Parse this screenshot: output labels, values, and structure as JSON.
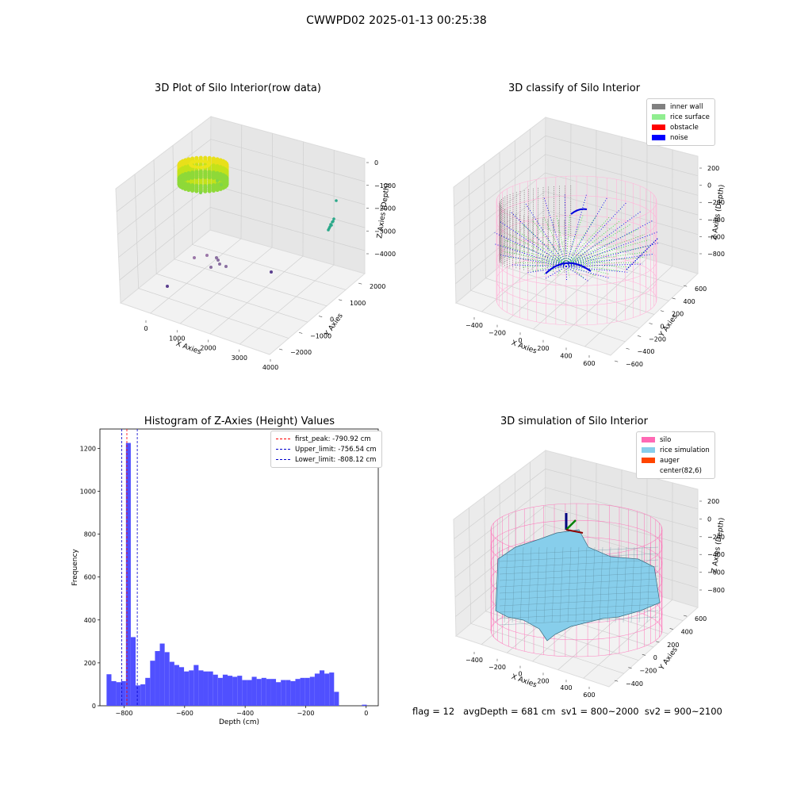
{
  "figure": {
    "suptitle": "CWWPD02 2025-01-13 00:25:38",
    "footer": "flag = 12   avgDepth = 681 cm  sv1 = 800~2000  sv2 = 900~2100"
  },
  "panels": {
    "raw": {
      "title": "3D Plot of Silo Interior(row data)",
      "xlabel": "X Axies",
      "ylabel": "Y Axies",
      "zlabel": "Z Axies (Depth)",
      "xticks": [
        "0",
        "1000",
        "2000",
        "3000",
        "4000"
      ],
      "yticks": [
        "−2000",
        "−1000",
        "0",
        "1000",
        "2000"
      ],
      "zticks": [
        "0",
        "−1000",
        "−2000",
        "−3000",
        "−4000"
      ]
    },
    "classify": {
      "title": "3D classify of Silo Interior",
      "xlabel": "X Axies",
      "ylabel": "Y Axies",
      "zlabel": "Z Axies (Depth)",
      "xticks": [
        "−400",
        "−200",
        "0",
        "200",
        "400",
        "600"
      ],
      "yticks": [
        "−600",
        "−400",
        "−200",
        "0",
        "200",
        "400",
        "600"
      ],
      "zticks": [
        "200",
        "0",
        "−200",
        "−400",
        "−600",
        "−800"
      ],
      "legend": [
        {
          "label": "inner wall",
          "color": "#808080"
        },
        {
          "label": "rice surface",
          "color": "#90ee90"
        },
        {
          "label": "obstacle",
          "color": "#ff0000"
        },
        {
          "label": "noise",
          "color": "#0000ff"
        }
      ]
    },
    "simulation": {
      "title": "3D simulation of Silo Interior",
      "xlabel": "X Axies",
      "ylabel": "Y Axies",
      "zlabel": "Z Axies (Depth)",
      "xticks": [
        "−400",
        "−200",
        "0",
        "200",
        "400",
        "600"
      ],
      "yticks": [
        "−400",
        "−200",
        "0",
        "200",
        "400",
        "600"
      ],
      "zticks": [
        "200",
        "0",
        "−200",
        "−400",
        "−600",
        "−800"
      ],
      "legend": [
        {
          "label": "silo",
          "color": "#ff69b4"
        },
        {
          "label": "rice simulation",
          "color": "#87ceeb"
        },
        {
          "label": "auger",
          "color": "#ff4500"
        },
        {
          "label": "center(82,6)",
          "color": "none"
        }
      ]
    }
  },
  "chart_data": [
    {
      "type": "histogram",
      "title": "Histogram of Z-Axies (Height) Values",
      "xlabel": "Depth (cm)",
      "ylabel": "Frequency",
      "xlim": [
        -880,
        40
      ],
      "ylim": [
        0,
        1290
      ],
      "xticks": [
        -800,
        -600,
        -400,
        -200,
        0
      ],
      "xtick_labels": [
        "−800",
        "−600",
        "−400",
        "−200",
        "0"
      ],
      "yticks": [
        0,
        200,
        400,
        600,
        800,
        1000,
        1200
      ],
      "bar_color": "#5050ff",
      "bins": [
        {
          "x0": -858,
          "x1": -842,
          "count": 147
        },
        {
          "x0": -842,
          "x1": -826,
          "count": 115
        },
        {
          "x0": -826,
          "x1": -810,
          "count": 110
        },
        {
          "x0": -810,
          "x1": -794,
          "count": 115
        },
        {
          "x0": -794,
          "x1": -778,
          "count": 1225
        },
        {
          "x0": -778,
          "x1": -762,
          "count": 320
        },
        {
          "x0": -762,
          "x1": -746,
          "count": 95
        },
        {
          "x0": -746,
          "x1": -730,
          "count": 100
        },
        {
          "x0": -730,
          "x1": -714,
          "count": 130
        },
        {
          "x0": -714,
          "x1": -698,
          "count": 210
        },
        {
          "x0": -698,
          "x1": -682,
          "count": 255
        },
        {
          "x0": -682,
          "x1": -666,
          "count": 290
        },
        {
          "x0": -666,
          "x1": -650,
          "count": 250
        },
        {
          "x0": -650,
          "x1": -634,
          "count": 205
        },
        {
          "x0": -634,
          "x1": -618,
          "count": 190
        },
        {
          "x0": -618,
          "x1": -602,
          "count": 180
        },
        {
          "x0": -602,
          "x1": -586,
          "count": 160
        },
        {
          "x0": -586,
          "x1": -570,
          "count": 165
        },
        {
          "x0": -570,
          "x1": -554,
          "count": 190
        },
        {
          "x0": -554,
          "x1": -538,
          "count": 165
        },
        {
          "x0": -538,
          "x1": -522,
          "count": 160
        },
        {
          "x0": -522,
          "x1": -506,
          "count": 160
        },
        {
          "x0": -506,
          "x1": -490,
          "count": 145
        },
        {
          "x0": -490,
          "x1": -474,
          "count": 130
        },
        {
          "x0": -474,
          "x1": -458,
          "count": 145
        },
        {
          "x0": -458,
          "x1": -442,
          "count": 140
        },
        {
          "x0": -442,
          "x1": -426,
          "count": 135
        },
        {
          "x0": -426,
          "x1": -410,
          "count": 140
        },
        {
          "x0": -410,
          "x1": -394,
          "count": 120
        },
        {
          "x0": -394,
          "x1": -378,
          "count": 120
        },
        {
          "x0": -378,
          "x1": -362,
          "count": 135
        },
        {
          "x0": -362,
          "x1": -346,
          "count": 125
        },
        {
          "x0": -346,
          "x1": -330,
          "count": 130
        },
        {
          "x0": -330,
          "x1": -314,
          "count": 125
        },
        {
          "x0": -314,
          "x1": -298,
          "count": 125
        },
        {
          "x0": -298,
          "x1": -282,
          "count": 110
        },
        {
          "x0": -282,
          "x1": -266,
          "count": 120
        },
        {
          "x0": -266,
          "x1": -250,
          "count": 120
        },
        {
          "x0": -250,
          "x1": -234,
          "count": 115
        },
        {
          "x0": -234,
          "x1": -218,
          "count": 125
        },
        {
          "x0": -218,
          "x1": -202,
          "count": 130
        },
        {
          "x0": -202,
          "x1": -186,
          "count": 130
        },
        {
          "x0": -186,
          "x1": -170,
          "count": 135
        },
        {
          "x0": -170,
          "x1": -154,
          "count": 150
        },
        {
          "x0": -154,
          "x1": -138,
          "count": 165
        },
        {
          "x0": -138,
          "x1": -122,
          "count": 150
        },
        {
          "x0": -122,
          "x1": -106,
          "count": 155
        },
        {
          "x0": -106,
          "x1": -90,
          "count": 65
        },
        {
          "x0": -14,
          "x1": 2,
          "count": 5
        }
      ],
      "vlines": [
        {
          "label": "first_peak: -790.92 cm",
          "x": -790.92,
          "color": "#ff0000"
        },
        {
          "label": "Upper_limit: -756.54 cm",
          "x": -756.54,
          "color": "#0000cc"
        },
        {
          "label": "Lower_limit: -808.12 cm",
          "x": -808.12,
          "color": "#0000cc"
        }
      ],
      "legend_position": "top-right"
    }
  ]
}
